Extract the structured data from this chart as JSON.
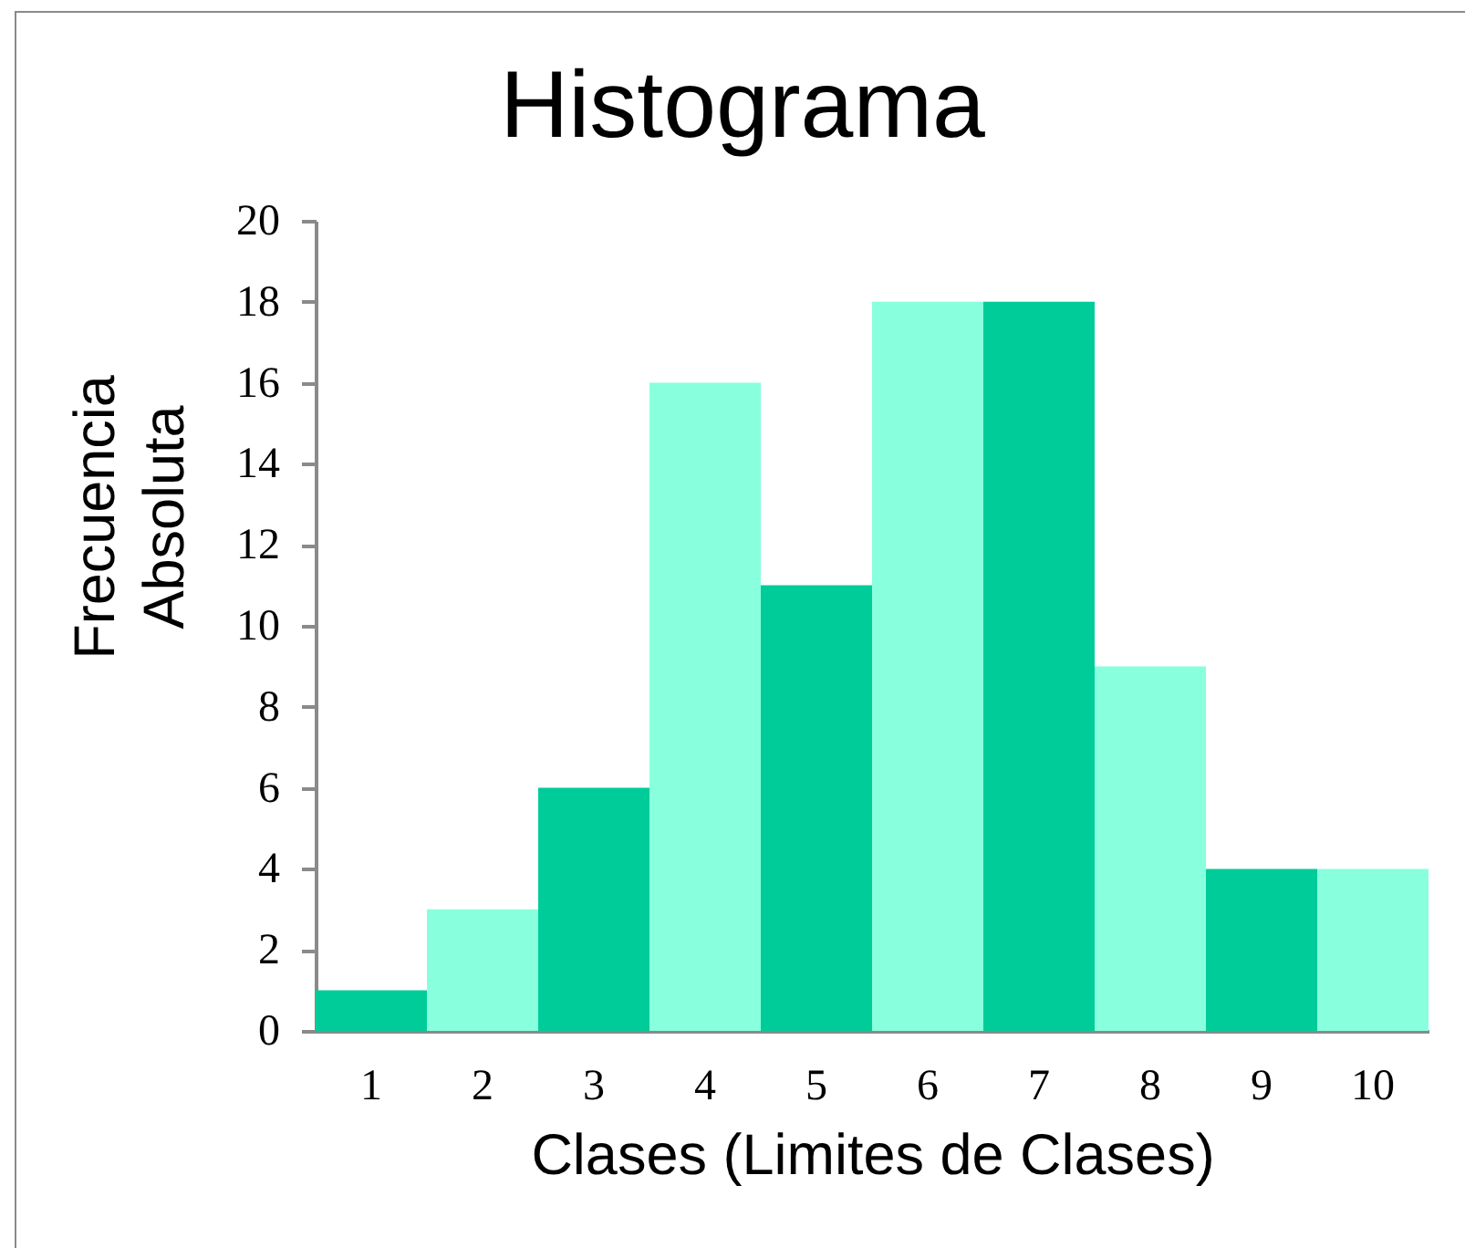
{
  "chart_data": {
    "type": "bar",
    "title": "Histograma",
    "xlabel": "Clases (Limites de Clases)",
    "ylabel": "Frecuencia\nAbsoluta",
    "categories": [
      "1",
      "2",
      "3",
      "4",
      "5",
      "6",
      "7",
      "8",
      "9",
      "10"
    ],
    "values": [
      1,
      3,
      6,
      16,
      11,
      18,
      18,
      9,
      4,
      4
    ],
    "colors": [
      "#00cc99",
      "#88ffdd",
      "#00cc99",
      "#88ffdd",
      "#00cc99",
      "#88ffdd",
      "#00cc99",
      "#88ffdd",
      "#00cc99",
      "#88ffdd"
    ],
    "ylim": [
      0,
      20
    ],
    "yticks": [
      0,
      2,
      4,
      6,
      8,
      10,
      12,
      14,
      16,
      18,
      20
    ]
  }
}
